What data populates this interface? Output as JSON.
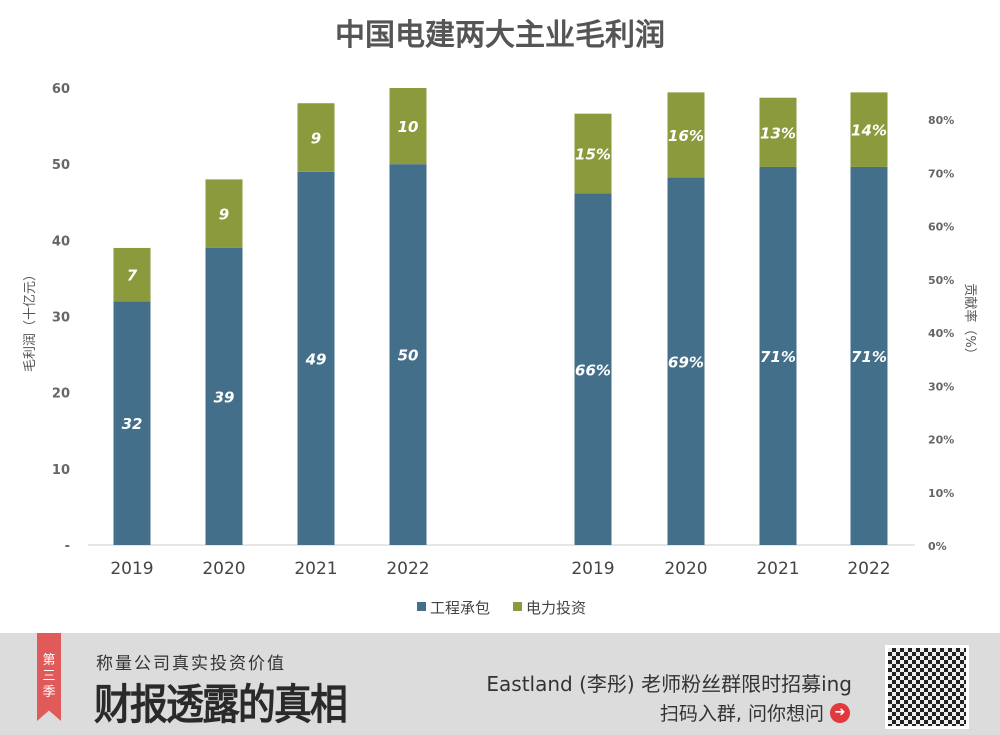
{
  "chart_data": [
    {
      "type": "bar",
      "stacked": true,
      "title": "中国电建两大主业毛利润",
      "ylabel": "毛利润（十亿元）",
      "categories": [
        "2019",
        "2020",
        "2021",
        "2022"
      ],
      "series": [
        {
          "name": "工程承包",
          "values": [
            32,
            39,
            49,
            50
          ],
          "labels": [
            "32",
            "39",
            "49",
            "50"
          ]
        },
        {
          "name": "电力投资",
          "values": [
            7,
            9,
            9,
            10
          ],
          "labels": [
            "7",
            "9",
            "9",
            "10"
          ]
        }
      ],
      "ylim": [
        0,
        60
      ],
      "yticks": [
        "-",
        "10",
        "20",
        "30",
        "40",
        "50",
        "60"
      ],
      "grid": false
    },
    {
      "type": "bar",
      "stacked": true,
      "ylabel": "贡献率（%）",
      "categories": [
        "2019",
        "2020",
        "2021",
        "2022"
      ],
      "series": [
        {
          "name": "工程承包",
          "values": [
            66,
            69,
            71,
            71
          ],
          "labels": [
            "66%",
            "69%",
            "71%",
            "71%"
          ]
        },
        {
          "name": "电力投资",
          "values": [
            15,
            16,
            13,
            14
          ],
          "labels": [
            "15%",
            "16%",
            "13%",
            "14%"
          ]
        }
      ],
      "ylim": [
        0,
        80
      ],
      "yticks": [
        "0%",
        "10%",
        "20%",
        "30%",
        "40%",
        "50%",
        "60%",
        "70%",
        "80%"
      ],
      "grid": false
    }
  ],
  "legend": {
    "position": "bottom",
    "items": [
      "工程承包",
      "电力投资"
    ]
  },
  "colors": {
    "engineering": "#436f8a",
    "power": "#8a9a3c"
  },
  "footer": {
    "ribbon": "第三季",
    "slogan": "称量公司真实投资价值",
    "brand": "财报透露的真相",
    "recruit": "Eastland (李彤) 老师粉丝群限时招募ing",
    "scan": "扫码入群, 问你想问",
    "arrow_icon": "arrow-right-circle-icon",
    "qr_icon": "qr-code-icon"
  }
}
